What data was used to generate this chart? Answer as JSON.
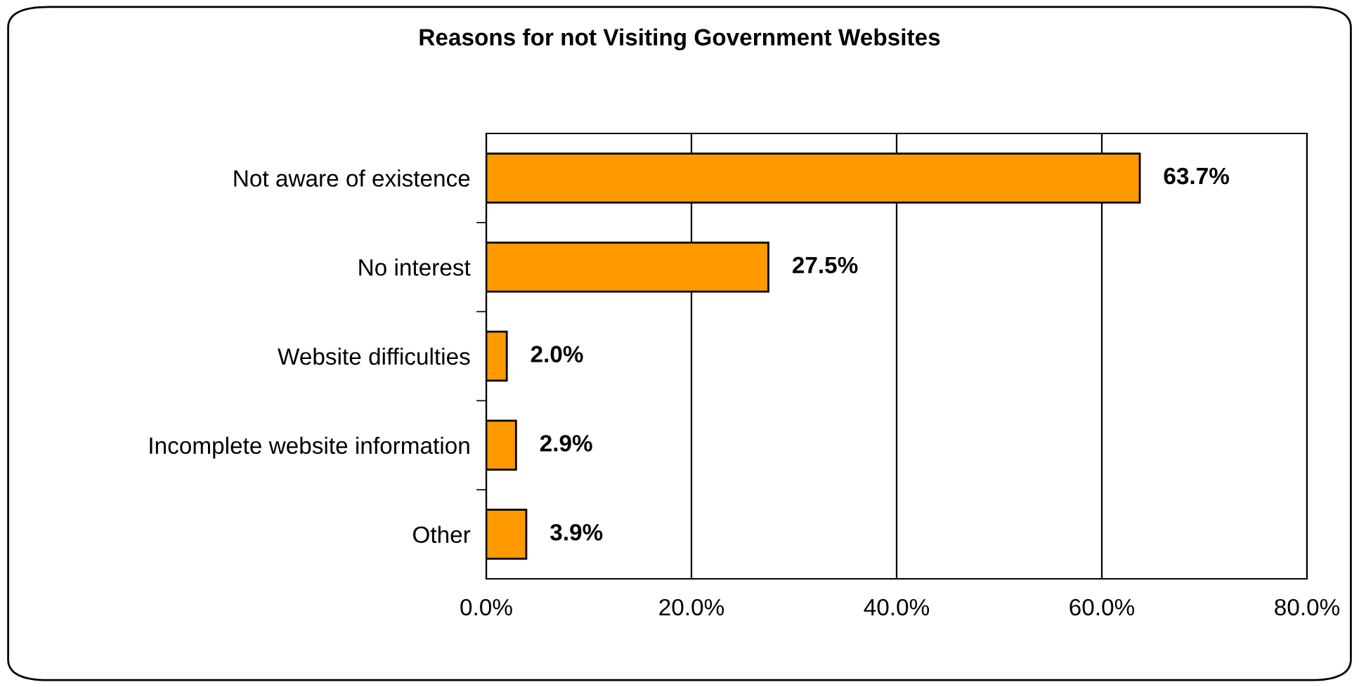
{
  "chart_data": {
    "type": "bar",
    "orientation": "horizontal",
    "title": "Reasons for not Visiting Government Websites",
    "categories": [
      "Not aware of existence",
      "No interest",
      "Website difficulties",
      "Incomplete website information",
      "Other"
    ],
    "values": [
      63.7,
      27.5,
      2.0,
      2.9,
      3.9
    ],
    "value_labels": [
      "63.7%",
      "27.5%",
      "2.0%",
      "2.9%",
      "3.9%"
    ],
    "color": "#ff9900",
    "xlim": [
      0,
      80
    ],
    "xticks": [
      {
        "value": 0,
        "label": "0.0%"
      },
      {
        "value": 20,
        "label": "20.0%"
      },
      {
        "value": 40,
        "label": "40.0%"
      },
      {
        "value": 60,
        "label": "60.0%"
      },
      {
        "value": 80,
        "label": "80.0%"
      }
    ],
    "grid": "x",
    "legend": false
  }
}
